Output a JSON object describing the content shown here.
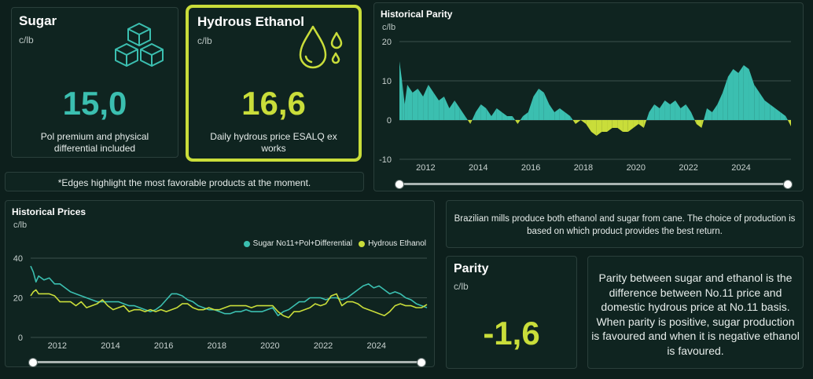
{
  "sugar_card": {
    "title": "Sugar",
    "unit": "c/lb",
    "value": "15,0",
    "description": "Pol premium and physical differential included",
    "icon": "sugar-cubes-icon"
  },
  "ethanol_card": {
    "title": "Hydrous Ethanol",
    "unit": "c/lb",
    "value": "16,6",
    "description": "Daily hydrous price ESALQ ex works",
    "icon": "droplets-icon",
    "highlight_color": "#c9dd3a"
  },
  "note": {
    "text": "*Edges highlight the most favorable products at the moment."
  },
  "info_box": {
    "text": "Brazilian mills produce both ethanol and sugar from cane. The choice of production is based on which product provides the best return."
  },
  "parity_card": {
    "title": "Parity",
    "unit": "c/lb",
    "value": "-1,6"
  },
  "parity_explanation": {
    "text": "Parity between sugar and ethanol is the difference between No.11 price and domestic hydrous price at No.11 basis. When parity is positive, sugar production is favoured and when it is negative ethanol is favoured."
  },
  "colors": {
    "sugar": "#3bbfb0",
    "ethanol": "#c9dd3a",
    "background": "#0d1f1c",
    "card": "#0f2420"
  },
  "chart_data": [
    {
      "type": "area",
      "title": "Historical Parity",
      "ylabel": "c/lb",
      "xlim": [
        2011.0,
        2025.9
      ],
      "ylim": [
        -10,
        20
      ],
      "yticks": [
        -10,
        0,
        10,
        20
      ],
      "xticks": [
        "2012",
        "2014",
        "2016",
        "2018",
        "2020",
        "2022",
        "2024"
      ],
      "grid": true,
      "positive_color": "#3bbfb0",
      "negative_color": "#c9dd3a",
      "x": [
        2011.0,
        2011.1,
        2011.2,
        2011.3,
        2011.5,
        2011.7,
        2011.9,
        2012.1,
        2012.3,
        2012.5,
        2012.7,
        2012.9,
        2013.1,
        2013.3,
        2013.5,
        2013.7,
        2013.9,
        2014.1,
        2014.3,
        2014.5,
        2014.7,
        2014.9,
        2015.1,
        2015.3,
        2015.5,
        2015.7,
        2015.9,
        2016.1,
        2016.3,
        2016.5,
        2016.7,
        2016.9,
        2017.1,
        2017.3,
        2017.5,
        2017.7,
        2017.9,
        2018.1,
        2018.3,
        2018.5,
        2018.7,
        2018.9,
        2019.1,
        2019.3,
        2019.5,
        2019.7,
        2019.9,
        2020.1,
        2020.3,
        2020.5,
        2020.7,
        2020.9,
        2021.1,
        2021.3,
        2021.5,
        2021.7,
        2021.9,
        2022.1,
        2022.3,
        2022.5,
        2022.7,
        2022.9,
        2023.1,
        2023.3,
        2023.5,
        2023.7,
        2023.9,
        2024.1,
        2024.3,
        2024.5,
        2024.7,
        2024.9,
        2025.1,
        2025.3,
        2025.5,
        2025.7,
        2025.9
      ],
      "values": [
        15,
        10,
        4,
        9,
        7,
        8,
        6,
        9,
        7,
        5,
        6,
        3,
        5,
        3,
        1,
        -1,
        2,
        4,
        3,
        1,
        3,
        2,
        1,
        1,
        -1,
        1,
        2,
        6,
        8,
        7,
        4,
        2,
        3,
        2,
        1,
        -1,
        0,
        -1,
        -3,
        -4,
        -3,
        -3,
        -2,
        -2,
        -3,
        -3,
        -2,
        -1,
        -2,
        2,
        4,
        3,
        5,
        4,
        5,
        3,
        4,
        2,
        -1,
        -2,
        3,
        2,
        4,
        7,
        11,
        13,
        12,
        14,
        13,
        9,
        7,
        5,
        4,
        3,
        2,
        1,
        -1.6
      ]
    },
    {
      "type": "line",
      "title": "Historical Prices",
      "ylabel": "c/lb",
      "xlim": [
        2011.0,
        2025.9
      ],
      "ylim": [
        0,
        40
      ],
      "yticks": [
        0,
        20,
        40
      ],
      "xticks": [
        "2012",
        "2014",
        "2016",
        "2018",
        "2020",
        "2022",
        "2024"
      ],
      "grid": true,
      "legend": "top-right",
      "x": [
        2011.0,
        2011.1,
        2011.2,
        2011.3,
        2011.5,
        2011.7,
        2011.9,
        2012.1,
        2012.3,
        2012.5,
        2012.7,
        2012.9,
        2013.1,
        2013.3,
        2013.5,
        2013.7,
        2013.9,
        2014.1,
        2014.3,
        2014.5,
        2014.7,
        2014.9,
        2015.1,
        2015.3,
        2015.5,
        2015.7,
        2015.9,
        2016.1,
        2016.3,
        2016.5,
        2016.7,
        2016.9,
        2017.1,
        2017.3,
        2017.5,
        2017.7,
        2017.9,
        2018.1,
        2018.3,
        2018.5,
        2018.7,
        2018.9,
        2019.1,
        2019.3,
        2019.5,
        2019.7,
        2019.9,
        2020.1,
        2020.3,
        2020.5,
        2020.7,
        2020.9,
        2021.1,
        2021.3,
        2021.5,
        2021.7,
        2021.9,
        2022.1,
        2022.3,
        2022.5,
        2022.7,
        2022.9,
        2023.1,
        2023.3,
        2023.5,
        2023.7,
        2023.9,
        2024.1,
        2024.3,
        2024.5,
        2024.7,
        2024.9,
        2025.1,
        2025.3,
        2025.5,
        2025.7,
        2025.9
      ],
      "series": [
        {
          "name": "Sugar No11+Pol+Differential",
          "color": "#3bbfb0",
          "values": [
            36,
            33,
            28,
            31,
            29,
            30,
            27,
            27,
            25,
            23,
            22,
            21,
            20,
            19,
            18,
            18,
            18,
            18,
            18,
            17,
            16,
            16,
            15,
            14,
            13,
            14,
            16,
            19,
            22,
            22,
            21,
            19,
            18,
            16,
            15,
            14,
            14,
            13,
            12,
            12,
            13,
            13,
            14,
            13,
            13,
            13,
            14,
            15,
            11,
            13,
            14,
            16,
            18,
            18,
            20,
            20,
            20,
            19,
            20,
            20,
            19,
            20,
            22,
            24,
            26,
            27,
            25,
            26,
            24,
            22,
            23,
            22,
            20,
            19,
            17,
            16,
            15
          ]
        },
        {
          "name": "Hydrous Ethanol",
          "color": "#c9dd3a",
          "values": [
            21,
            23,
            24,
            22,
            22,
            22,
            21,
            18,
            18,
            18,
            16,
            18,
            15,
            16,
            17,
            19,
            16,
            14,
            15,
            16,
            13,
            14,
            14,
            13,
            14,
            13,
            14,
            13,
            14,
            15,
            17,
            17,
            15,
            14,
            14,
            15,
            14,
            14,
            15,
            16,
            16,
            16,
            16,
            15,
            16,
            16,
            16,
            16,
            13,
            11,
            10,
            13,
            13,
            14,
            15,
            17,
            16,
            17,
            21,
            22,
            16,
            18,
            18,
            17,
            15,
            14,
            13,
            12,
            11,
            13,
            16,
            17,
            16,
            16,
            15,
            15,
            16.6
          ]
        }
      ]
    }
  ]
}
